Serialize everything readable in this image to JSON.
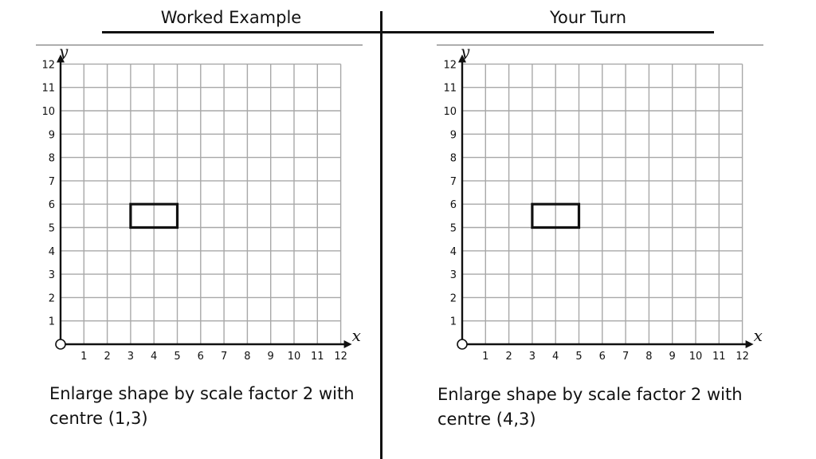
{
  "left": {
    "heading": "Worked Example",
    "caption_line1": "Enlarge shape by scale factor 2 with",
    "caption_line2": "centre (1,3)"
  },
  "right": {
    "heading": "Your Turn",
    "caption_line1": "Enlarge shape by scale factor 2 with",
    "caption_line2": "centre (4,3)"
  },
  "chart_data": [
    {
      "type": "scatter",
      "xlabel": "x",
      "ylabel": "y",
      "xlim": [
        0,
        12
      ],
      "ylim": [
        0,
        12
      ],
      "x_ticks": [
        "1",
        "2",
        "3",
        "4",
        "5",
        "6",
        "7",
        "8",
        "9",
        "10",
        "11",
        "12"
      ],
      "y_ticks": [
        "1",
        "2",
        "3",
        "4",
        "5",
        "6",
        "7",
        "8",
        "9",
        "10",
        "11",
        "12"
      ],
      "grid": true,
      "shape": {
        "name": "rectangle",
        "vertices": [
          [
            3,
            5
          ],
          [
            5,
            5
          ],
          [
            5,
            6
          ],
          [
            3,
            6
          ]
        ]
      }
    },
    {
      "type": "scatter",
      "xlabel": "x",
      "ylabel": "y",
      "xlim": [
        0,
        12
      ],
      "ylim": [
        0,
        12
      ],
      "x_ticks": [
        "1",
        "2",
        "3",
        "4",
        "5",
        "6",
        "7",
        "8",
        "9",
        "10",
        "11",
        "12"
      ],
      "y_ticks": [
        "1",
        "2",
        "3",
        "4",
        "5",
        "6",
        "7",
        "8",
        "9",
        "10",
        "11",
        "12"
      ],
      "grid": true,
      "shape": {
        "name": "rectangle",
        "vertices": [
          [
            3,
            5
          ],
          [
            5,
            5
          ],
          [
            5,
            6
          ],
          [
            3,
            6
          ]
        ]
      }
    }
  ]
}
